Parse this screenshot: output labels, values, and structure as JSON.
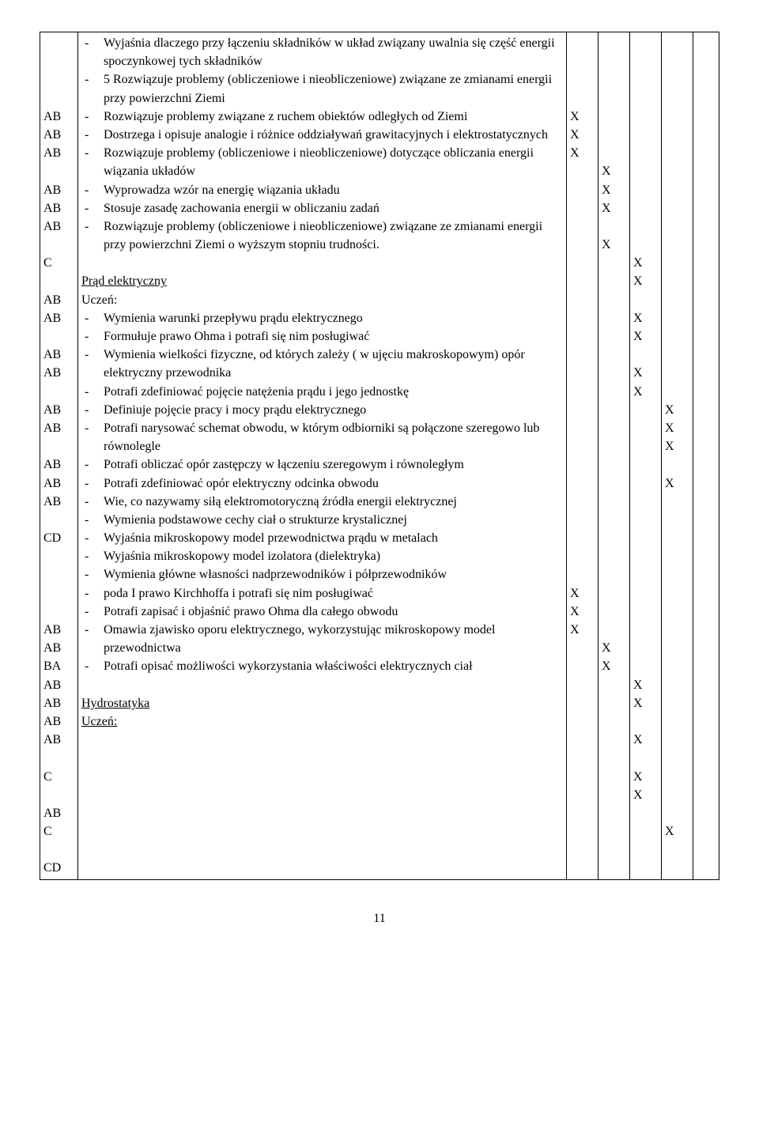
{
  "codes": {
    "block1": [
      "AB",
      "AB",
      "AB",
      "",
      "AB",
      "AB",
      "AB",
      "",
      "C",
      "",
      "AB",
      "AB"
    ],
    "block2": [
      "AB",
      "AB",
      "",
      "AB",
      "AB",
      "",
      "AB",
      "AB",
      "AB",
      "",
      "CD",
      "",
      "",
      "",
      "",
      "AB",
      "AB",
      "BA",
      "AB",
      "AB",
      "AB",
      "AB",
      "",
      "C",
      "",
      "AB",
      "C",
      "",
      "CD"
    ]
  },
  "body": {
    "block1": {
      "items": [
        "Wyjaśnia dlaczego przy łączeniu składników w układ związany uwalnia się część energii spoczynkowej tych składników",
        "5 Rozwiązuje problemy (obliczeniowe i nieobliczeniowe) związane ze zmianami energii przy powierzchni Ziemi",
        "Rozwiązuje problemy związane z ruchem obiektów odległych od Ziemi",
        "Dostrzega i opisuje analogie i różnice oddziaływań grawitacyjnych i elektrostatycznych",
        "Rozwiązuje problemy (obliczeniowe i nieobliczeniowe) dotyczące obliczania energii wiązania układów",
        "Wyprowadza wzór na energię wiązania układu",
        "Stosuje zasadę zachowania energii w obliczaniu zadań",
        "Rozwiązuje problemy (obliczeniowe i nieobliczeniowe) związane ze zmianami energii przy powierzchni Ziemi o wyższym stopniu trudności."
      ]
    },
    "block2": {
      "section_title": "Prąd elektryczny",
      "subtitle": "Uczeń:",
      "items": [
        "Wymienia warunki przepływu prądu elektrycznego",
        "Formułuje prawo Ohma i potrafi się nim posługiwać",
        "Wymienia wielkości fizyczne, od których zależy ( w ujęciu makroskopowym) opór elektryczny przewodnika",
        "Potrafi zdefiniować pojęcie natężenia prądu i jego jednostkę",
        "Definiuje pojęcie pracy i mocy prądu elektrycznego",
        "Potrafi narysować schemat obwodu, w którym odbiorniki są połączone szeregowo lub równolegle",
        "Potrafi obliczać opór zastępczy w łączeniu szeregowym i równoległym",
        "Potrafi zdefiniować opór elektryczny odcinka obwodu",
        "Wie, co nazywamy siłą elektromotoryczną źródła energii elektrycznej",
        "Wymienia podstawowe cechy ciał o strukturze krystalicznej",
        "Wyjaśnia mikroskopowy model przewodnictwa prądu w metalach",
        "Wyjaśnia mikroskopowy model izolatora (dielektryka)",
        "Wymienia główne własności nadprzewodników i półprzewodników",
        "poda I prawo Kirchhoffa i potrafi się nim posługiwać",
        "Potrafi zapisać i objaśnić prawo Ohma dla całego obwodu",
        "Omawia zjawisko oporu elektrycznego, wykorzystując mikroskopowy model przewodnictwa",
        "Potrafi opisać możliwości wykorzystania właściwości elektrycznych ciał"
      ]
    },
    "block3": {
      "section_title": "Hydrostatyka",
      "subtitle": "Uczeń:"
    }
  },
  "xmarks": {
    "col1": [
      "",
      "",
      "",
      "",
      "X",
      "X",
      "X",
      "",
      "",
      "",
      "",
      "",
      "",
      "",
      "",
      "",
      "",
      "",
      "",
      "",
      "",
      "",
      "",
      "",
      "",
      "",
      "",
      "",
      "",
      "",
      "X",
      "X",
      "X",
      "",
      "",
      "",
      "",
      "",
      "",
      "",
      "",
      "",
      "",
      ""
    ],
    "col2": [
      "",
      "",
      "",
      "",
      "",
      "",
      "",
      "X",
      "X",
      "X",
      "",
      "X",
      "",
      "",
      "",
      "",
      "",
      "",
      "",
      "",
      "",
      "",
      "",
      "",
      "",
      "",
      "",
      "",
      "",
      "",
      "",
      "",
      "",
      "X",
      "X",
      "",
      "",
      "",
      "",
      "",
      "",
      "",
      "",
      ""
    ],
    "col3": [
      "",
      "",
      "",
      "",
      "",
      "",
      "",
      "",
      "",
      "",
      "",
      "",
      "X",
      "X",
      "",
      "X",
      "X",
      "",
      "X",
      "X",
      "",
      "",
      "",
      "",
      "",
      "",
      "",
      "",
      "",
      "",
      "",
      "",
      "",
      "",
      "",
      "X",
      "X",
      "",
      "X",
      "",
      "X",
      "X",
      "",
      ""
    ],
    "col4": [
      "",
      "",
      "",
      "",
      "",
      "",
      "",
      "",
      "",
      "",
      "",
      "",
      "",
      "",
      "",
      "",
      "",
      "",
      "",
      "",
      "X",
      "X",
      "X",
      "",
      "X",
      "",
      "",
      "",
      "",
      "",
      "",
      "",
      "",
      "",
      "",
      "",
      "",
      "",
      "",
      "",
      "",
      "",
      "",
      "X"
    ]
  },
  "page_number": "11"
}
